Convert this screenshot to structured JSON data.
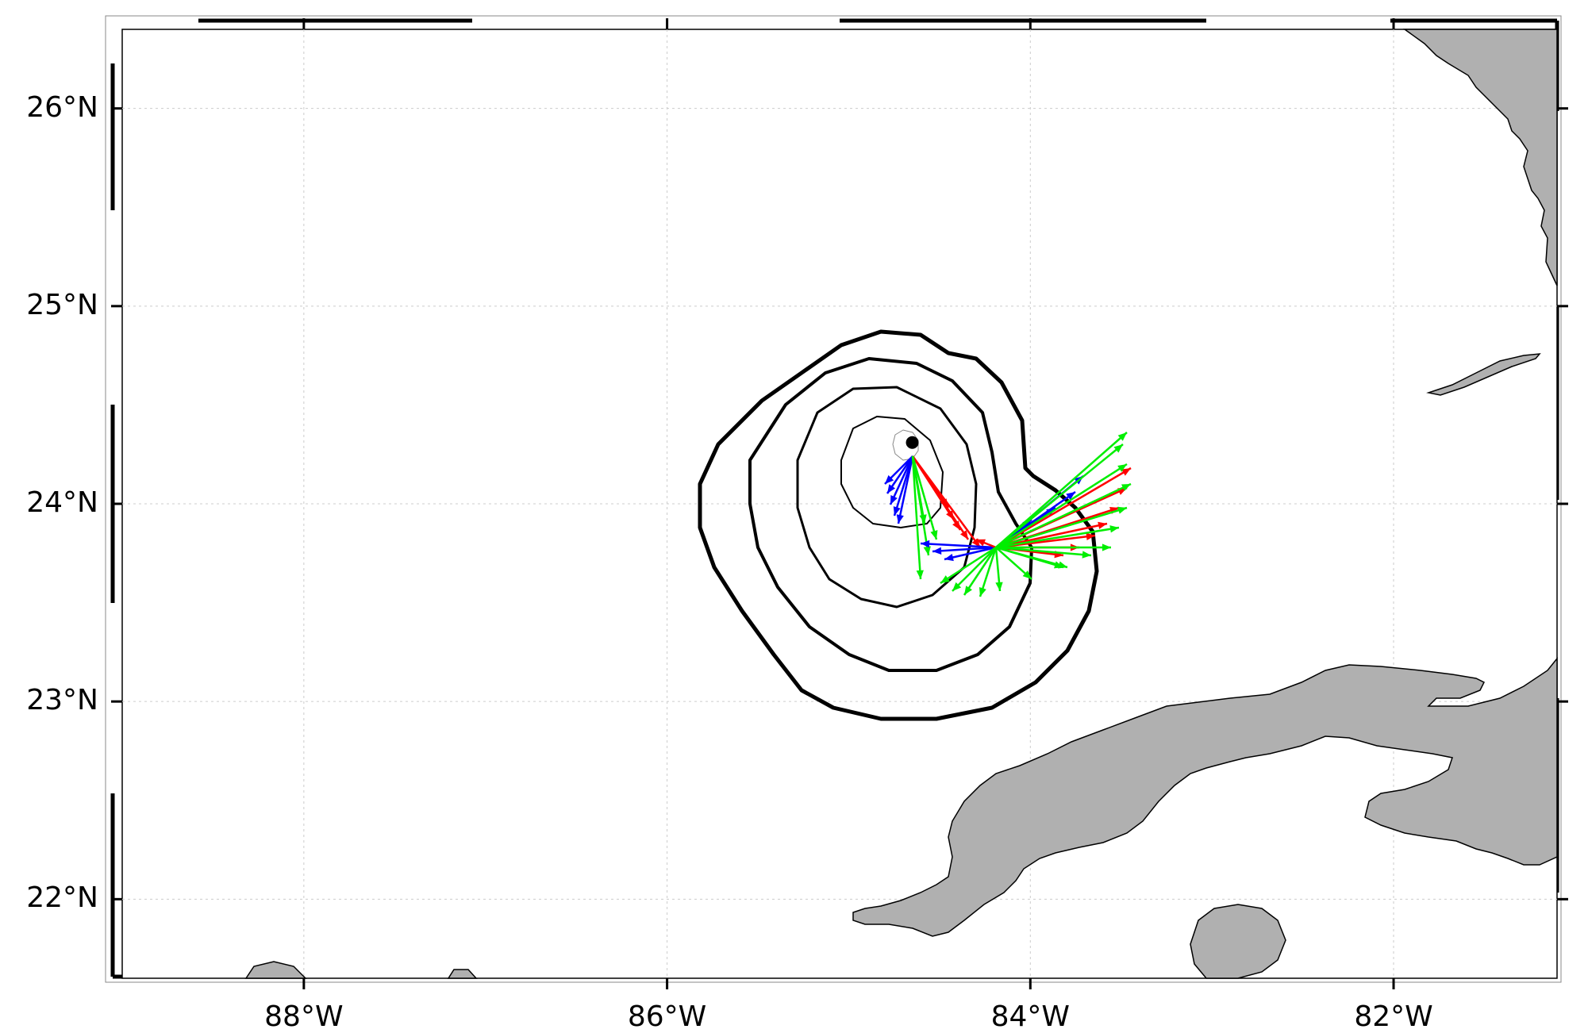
{
  "map": {
    "lat_ticks": [
      {
        "label": "26°N",
        "value": 26
      },
      {
        "label": "25°N",
        "value": 25
      },
      {
        "label": "24°N",
        "value": 24
      },
      {
        "label": "23°N",
        "value": 23
      },
      {
        "label": "22°N",
        "value": 22
      }
    ],
    "lon_ticks": [
      {
        "label": "88°W",
        "value": -88
      },
      {
        "label": "86°W",
        "value": -86
      },
      {
        "label": "84°W",
        "value": -84
      },
      {
        "label": "82°W",
        "value": -82
      }
    ],
    "lon_range": [
      -89,
      -81.1
    ],
    "lat_range": [
      21.6,
      26.4
    ],
    "grid": true,
    "land_color": "#b0b0b0",
    "arrow_colors": {
      "blue": "#0000ff",
      "red": "#ff0000",
      "green": "#00ee00"
    },
    "center_point": {
      "lon": -84.65,
      "lat": 24.31
    }
  }
}
